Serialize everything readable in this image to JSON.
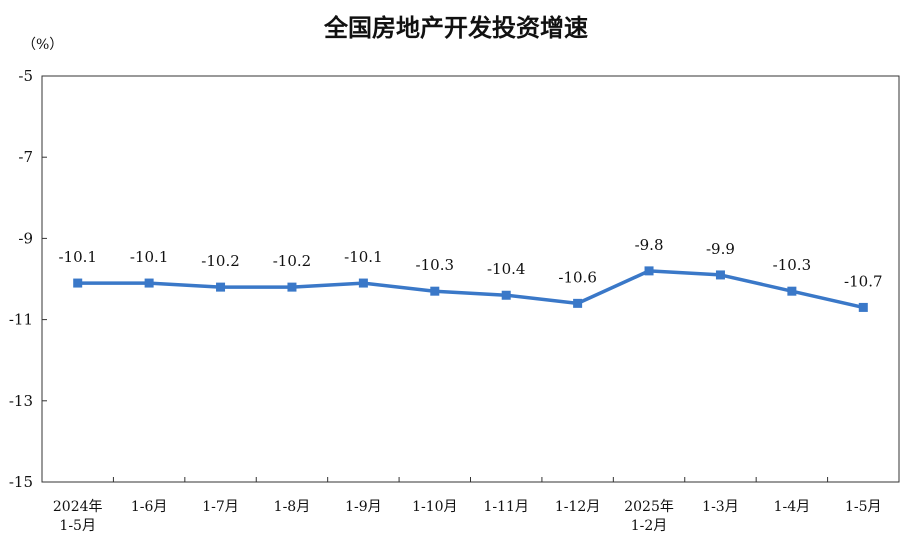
{
  "chart_data": {
    "type": "line",
    "title": "全国房地产开发投资增速",
    "unit_label": "（%）",
    "categories": [
      [
        "2024年",
        "1-5月"
      ],
      [
        "1-6月"
      ],
      [
        "1-7月"
      ],
      [
        "1-8月"
      ],
      [
        "1-9月"
      ],
      [
        "1-10月"
      ],
      [
        "1-11月"
      ],
      [
        "1-12月"
      ],
      [
        "2025年",
        "1-2月"
      ],
      [
        "1-3月"
      ],
      [
        "1-4月"
      ],
      [
        "1-5月"
      ]
    ],
    "values": [
      -10.1,
      -10.1,
      -10.2,
      -10.2,
      -10.1,
      -10.3,
      -10.4,
      -10.6,
      -9.8,
      -9.9,
      -10.3,
      -10.7
    ],
    "data_labels": [
      "-10.1",
      "-10.1",
      "-10.2",
      "-10.2",
      "-10.1",
      "-10.3",
      "-10.4",
      "-10.6",
      "-9.8",
      "-9.9",
      "-10.3",
      "-10.7"
    ],
    "ylim": [
      -15,
      -5
    ],
    "yticks": [
      -5,
      -7,
      -9,
      -11,
      -13,
      -15
    ],
    "ytick_labels": [
      "-5",
      "-7",
      "-9",
      "-11",
      "-13",
      "-15"
    ],
    "grid": false,
    "line_color": "#3a78c8",
    "marker": "square"
  }
}
